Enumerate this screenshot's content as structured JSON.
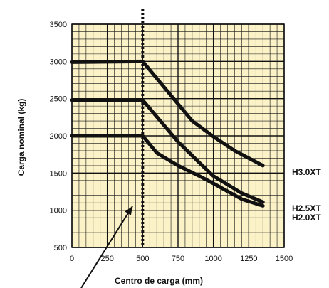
{
  "chart_data": {
    "type": "line",
    "title": "",
    "xlabel": "Centro de carga (mm)",
    "ylabel": "Carga nominal (kg)",
    "xlim": [
      0,
      1500
    ],
    "ylim": [
      500,
      3500
    ],
    "x_ticks": [
      0,
      250,
      500,
      750,
      1000,
      1250,
      1500
    ],
    "y_ticks": [
      500,
      1000,
      1500,
      2000,
      2500,
      3000,
      3500
    ],
    "grid": true,
    "colors": {
      "background": "#fbf2c8",
      "grid": "#111111",
      "line": "#111111"
    },
    "reference_line": {
      "x": 500,
      "style": "dotted"
    },
    "series": [
      {
        "name": "H3.0XT",
        "x": [
          0,
          500,
          850,
          1000,
          1150,
          1350
        ],
        "y": [
          2990,
          3000,
          2200,
          1990,
          1800,
          1600
        ]
      },
      {
        "name": "H2.5XT",
        "x": [
          0,
          500,
          750,
          900,
          1000,
          1200,
          1350
        ],
        "y": [
          2480,
          2480,
          1920,
          1640,
          1460,
          1230,
          1110
        ]
      },
      {
        "name": "H2.0XT",
        "x": [
          0,
          500,
          600,
          750,
          900,
          1000,
          1200,
          1350
        ],
        "y": [
          2000,
          2000,
          1770,
          1600,
          1460,
          1360,
          1150,
          1060
        ]
      }
    ],
    "annotation": {
      "type": "arrow"
    }
  }
}
